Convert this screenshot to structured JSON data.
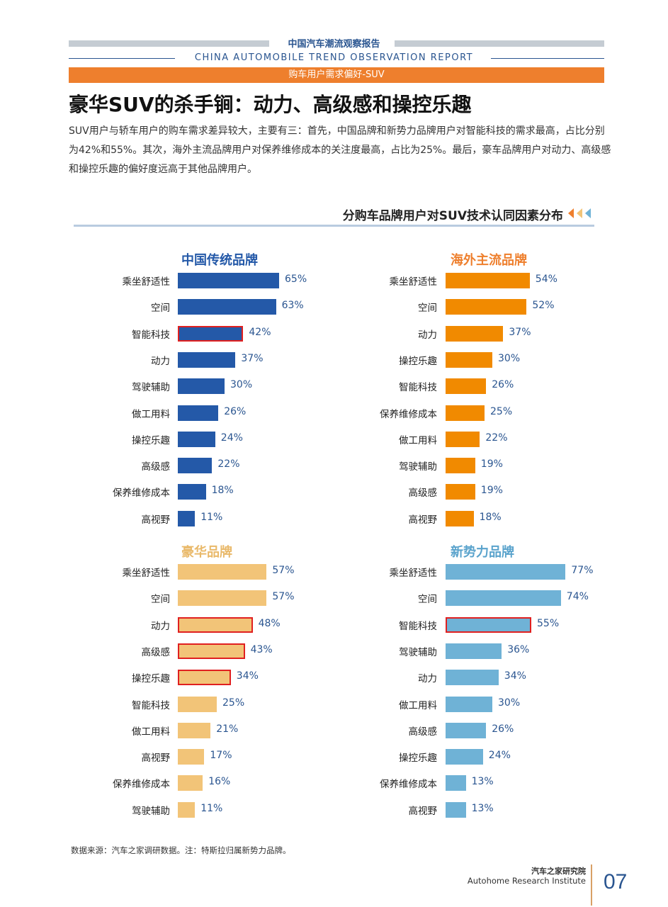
{
  "header": {
    "cn_title": "中国汽车潮流观察报告",
    "en_title": "CHINA AUTOMOBILE TREND OBSERVATION REPORT",
    "section_tag": "购车用户需求偏好-SUV"
  },
  "main_title": "豪华SUV的杀手锏：动力、高级感和操控乐趣",
  "intro": "SUV用户与轿车用户的购车需求差异较大，主要有三：首先，中国品牌和新势力品牌用户对智能科技的需求最高，占比分别为42%和55%。其次，海外主流品牌用户对保养维修成本的关注度最高，占比为25%。最后，豪车品牌用户对动力、高级感和操控乐趣的偏好度远高于其他品牌用户。",
  "section_title": "分购车品牌用户对SUV技术认同因素分布",
  "chart_data": [
    {
      "type": "bar",
      "title": "中国传统品牌",
      "color": "#2459a8",
      "title_color": "#2459a8",
      "value_color": "#2a5590",
      "categories": [
        "乘坐舒适性",
        "空间",
        "智能科技",
        "动力",
        "驾驶辅助",
        "做工用料",
        "操控乐趣",
        "高级感",
        "保养维修成本",
        "高视野"
      ],
      "values": [
        65,
        63,
        42,
        37,
        30,
        26,
        24,
        22,
        18,
        11
      ],
      "labels": [
        "65%",
        "63%",
        "42%",
        "37%",
        "30%",
        "26%",
        "24%",
        "22%",
        "18%",
        "11%"
      ],
      "highlight": [
        "智能科技"
      ]
    },
    {
      "type": "bar",
      "title": "海外主流品牌",
      "color": "#f18a00",
      "title_color": "#ee7f2d",
      "value_color": "#2a5590",
      "categories": [
        "乘坐舒适性",
        "空间",
        "动力",
        "操控乐趣",
        "智能科技",
        "保养维修成本",
        "做工用料",
        "驾驶辅助",
        "高级感",
        "高视野"
      ],
      "values": [
        54,
        52,
        37,
        30,
        26,
        25,
        22,
        19,
        19,
        18
      ],
      "labels": [
        "54%",
        "52%",
        "37%",
        "30%",
        "26%",
        "25%",
        "22%",
        "19%",
        "19%",
        "18%"
      ],
      "highlight": []
    },
    {
      "type": "bar",
      "title": "豪华品牌",
      "color": "#f2c478",
      "title_color": "#e9b96a",
      "value_color": "#2a5590",
      "categories": [
        "乘坐舒适性",
        "空间",
        "动力",
        "高级感",
        "操控乐趣",
        "智能科技",
        "做工用料",
        "高视野",
        "保养维修成本",
        "驾驶辅助"
      ],
      "values": [
        57,
        57,
        48,
        43,
        34,
        25,
        21,
        17,
        16,
        11
      ],
      "labels": [
        "57%",
        "57%",
        "48%",
        "43%",
        "34%",
        "25%",
        "21%",
        "17%",
        "16%",
        "11%"
      ],
      "highlight": [
        "动力",
        "高级感",
        "操控乐趣"
      ]
    },
    {
      "type": "bar",
      "title": "新势力品牌",
      "color": "#6fb2d6",
      "title_color": "#5aa3cc",
      "value_color": "#2a5590",
      "categories": [
        "乘坐舒适性",
        "空间",
        "智能科技",
        "驾驶辅助",
        "动力",
        "做工用料",
        "高级感",
        "操控乐趣",
        "保养维修成本",
        "高视野"
      ],
      "values": [
        77,
        74,
        55,
        36,
        34,
        30,
        26,
        24,
        13,
        13
      ],
      "labels": [
        "77%",
        "74%",
        "55%",
        "36%",
        "34%",
        "30%",
        "26%",
        "24%",
        "13%",
        "13%"
      ],
      "highlight": [
        "智能科技"
      ]
    }
  ],
  "source_note": "数据来源：汽车之家调研数据。注：特斯拉归属新势力品牌。",
  "footer": {
    "institute_cn": "汽车之家研究院",
    "institute_en": "Autohome Research Institute",
    "page_number": "07"
  }
}
